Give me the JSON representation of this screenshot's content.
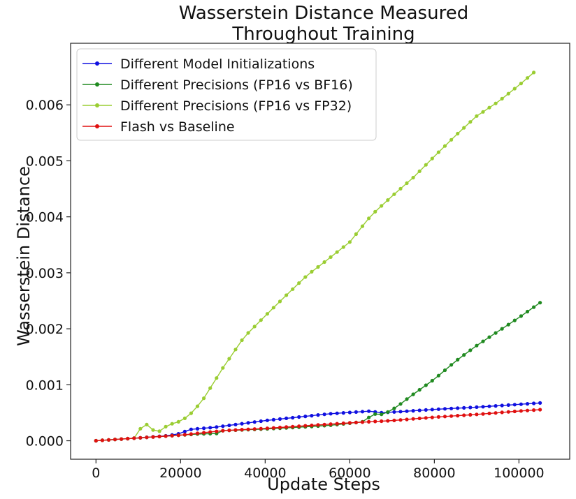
{
  "chart_data": {
    "type": "line",
    "title": [
      "Wasserstein Distance Measured",
      "Throughout Training"
    ],
    "xlabel": "Update Steps",
    "ylabel": "Wasserstein Distance",
    "xlim": [
      -6000,
      112000
    ],
    "ylim": [
      -0.00033,
      0.0071
    ],
    "xticks": [
      0,
      20000,
      40000,
      60000,
      80000,
      100000
    ],
    "xtick_labels": [
      "0",
      "20000",
      "40000",
      "60000",
      "80000",
      "100000"
    ],
    "yticks": [
      0.0,
      0.001,
      0.002,
      0.003,
      0.004,
      0.005,
      0.006
    ],
    "ytick_labels": [
      "0.000",
      "0.001",
      "0.002",
      "0.003",
      "0.004",
      "0.005",
      "0.006"
    ],
    "legend_position": "top-left",
    "series": [
      {
        "name": "Different Model Initializations",
        "color": "#1010e0",
        "points": [
          [
            0,
            0
          ],
          [
            10000,
            5e-05
          ],
          [
            17000,
            9e-05
          ],
          [
            20000,
            0.00013
          ],
          [
            22000,
            0.0002
          ],
          [
            28000,
            0.00024
          ],
          [
            40000,
            0.00036
          ],
          [
            55000,
            0.00048
          ],
          [
            65000,
            0.00053
          ],
          [
            67000,
            0.0005
          ],
          [
            72000,
            0.00052
          ],
          [
            80000,
            0.00056
          ],
          [
            90000,
            0.0006
          ],
          [
            100000,
            0.00065
          ],
          [
            106000,
            0.00068
          ]
        ]
      },
      {
        "name": "Different Precisions (FP16 vs BF16)",
        "color": "#208a20",
        "points": [
          [
            0,
            0
          ],
          [
            10000,
            5e-05
          ],
          [
            20000,
            0.0001
          ],
          [
            24000,
            0.00012
          ],
          [
            29000,
            0.00013
          ],
          [
            30000,
            0.00018
          ],
          [
            40000,
            0.00021
          ],
          [
            50000,
            0.00025
          ],
          [
            56000,
            0.00028
          ],
          [
            62000,
            0.00033
          ],
          [
            64000,
            0.00035
          ],
          [
            65000,
            0.00048
          ],
          [
            68000,
            0.00047
          ],
          [
            71000,
            0.0006
          ],
          [
            75000,
            0.00083
          ],
          [
            80000,
            0.0011
          ],
          [
            85000,
            0.00142
          ],
          [
            90000,
            0.0017
          ],
          [
            95000,
            0.00195
          ],
          [
            100000,
            0.0022
          ],
          [
            106000,
            0.00252
          ]
        ]
      },
      {
        "name": "Different Precisions (FP16 vs FP32)",
        "color": "#9acd32",
        "points": [
          [
            0,
            0
          ],
          [
            10000,
            5e-05
          ],
          [
            11000,
            0.00038
          ],
          [
            13000,
            0.0002
          ],
          [
            15000,
            0.00017
          ],
          [
            17000,
            0.00028
          ],
          [
            20000,
            0.00035
          ],
          [
            22000,
            0.00045
          ],
          [
            25000,
            0.0007
          ],
          [
            30000,
            0.0013
          ],
          [
            35000,
            0.00185
          ],
          [
            40000,
            0.00223
          ],
          [
            45000,
            0.0026
          ],
          [
            50000,
            0.00296
          ],
          [
            55000,
            0.00325
          ],
          [
            60000,
            0.00355
          ],
          [
            65000,
            0.00402
          ],
          [
            70000,
            0.00437
          ],
          [
            75000,
            0.0047
          ],
          [
            80000,
            0.00508
          ],
          [
            85000,
            0.00545
          ],
          [
            90000,
            0.0058
          ],
          [
            95000,
            0.00605
          ],
          [
            100000,
            0.00635
          ],
          [
            104000,
            0.00661
          ]
        ]
      },
      {
        "name": "Flash vs Baseline",
        "color": "#e01010",
        "points": [
          [
            0,
            0
          ],
          [
            10000,
            5e-05
          ],
          [
            20000,
            0.0001
          ],
          [
            30000,
            0.00018
          ],
          [
            40000,
            0.00022
          ],
          [
            50000,
            0.00027
          ],
          [
            60000,
            0.00032
          ],
          [
            70000,
            0.00036
          ],
          [
            80000,
            0.00042
          ],
          [
            90000,
            0.00047
          ],
          [
            100000,
            0.00053
          ],
          [
            106000,
            0.00056
          ]
        ]
      }
    ]
  }
}
